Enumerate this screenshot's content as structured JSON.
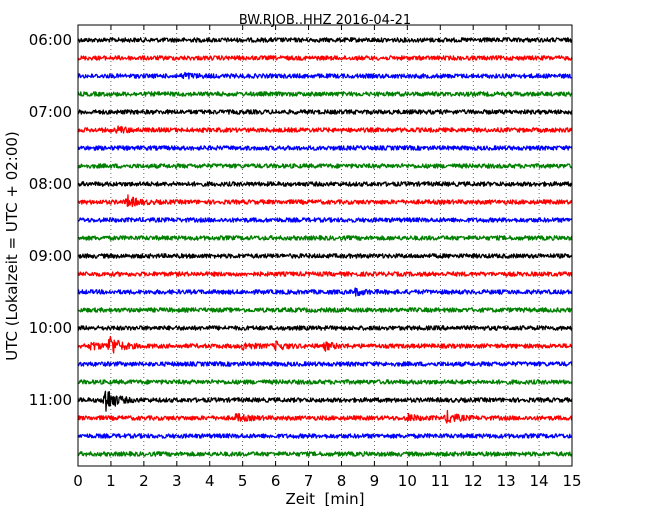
{
  "chart_data": {
    "type": "line",
    "title": "BW.RJOB..HHZ 2016-04-21",
    "xlabel": "Zeit  [min]",
    "ylabel": "UTC (Lokalzeit = UTC + 02:00)",
    "xlim": [
      0,
      15
    ],
    "x_ticks": [
      0,
      1,
      2,
      3,
      4,
      5,
      6,
      7,
      8,
      9,
      10,
      11,
      12,
      13,
      14,
      15
    ],
    "y_ticks": [
      {
        "label": "06:00",
        "trace": 0
      },
      {
        "label": "07:00",
        "trace": 4
      },
      {
        "label": "08:00",
        "trace": 8
      },
      {
        "label": "09:00",
        "trace": 12
      },
      {
        "label": "10:00",
        "trace": 16
      },
      {
        "label": "11:00",
        "trace": 20
      }
    ],
    "grid": {
      "x": true,
      "y": false
    },
    "trace_colors": [
      "#000000",
      "#ff0000",
      "#0000ff",
      "#008000"
    ],
    "traces": [
      {
        "start": "06:00",
        "events": []
      },
      {
        "start": "06:15",
        "events": []
      },
      {
        "start": "06:30",
        "events": [
          {
            "t": 3.2,
            "amp": 1.2
          }
        ]
      },
      {
        "start": "06:45",
        "events": []
      },
      {
        "start": "07:00",
        "events": []
      },
      {
        "start": "07:15",
        "events": [
          {
            "t": 1.2,
            "amp": 1.3
          }
        ]
      },
      {
        "start": "07:30",
        "events": []
      },
      {
        "start": "07:45",
        "events": []
      },
      {
        "start": "08:00",
        "events": []
      },
      {
        "start": "08:15",
        "events": [
          {
            "t": 1.5,
            "amp": 2.5
          }
        ]
      },
      {
        "start": "08:30",
        "events": []
      },
      {
        "start": "08:45",
        "events": []
      },
      {
        "start": "09:00",
        "events": []
      },
      {
        "start": "09:15",
        "events": []
      },
      {
        "start": "09:30",
        "events": [
          {
            "t": 8.4,
            "amp": 1.3
          }
        ]
      },
      {
        "start": "09:45",
        "events": []
      },
      {
        "start": "10:00",
        "events": []
      },
      {
        "start": "10:15",
        "events": [
          {
            "t": 0.4,
            "amp": 1.6
          },
          {
            "t": 0.95,
            "amp": 5.0
          },
          {
            "t": 5.0,
            "amp": 1.5
          },
          {
            "t": 6.0,
            "amp": 1.6
          },
          {
            "t": 7.5,
            "amp": 1.5
          }
        ]
      },
      {
        "start": "10:30",
        "events": []
      },
      {
        "start": "10:45",
        "events": []
      },
      {
        "start": "11:00",
        "events": [
          {
            "t": 0.8,
            "amp": 7.0
          }
        ]
      },
      {
        "start": "11:15",
        "events": [
          {
            "t": 4.8,
            "amp": 1.6
          },
          {
            "t": 10.0,
            "amp": 1.3
          },
          {
            "t": 11.2,
            "amp": 2.6
          }
        ]
      },
      {
        "start": "11:30",
        "events": []
      },
      {
        "start": "11:45",
        "events": []
      }
    ]
  }
}
